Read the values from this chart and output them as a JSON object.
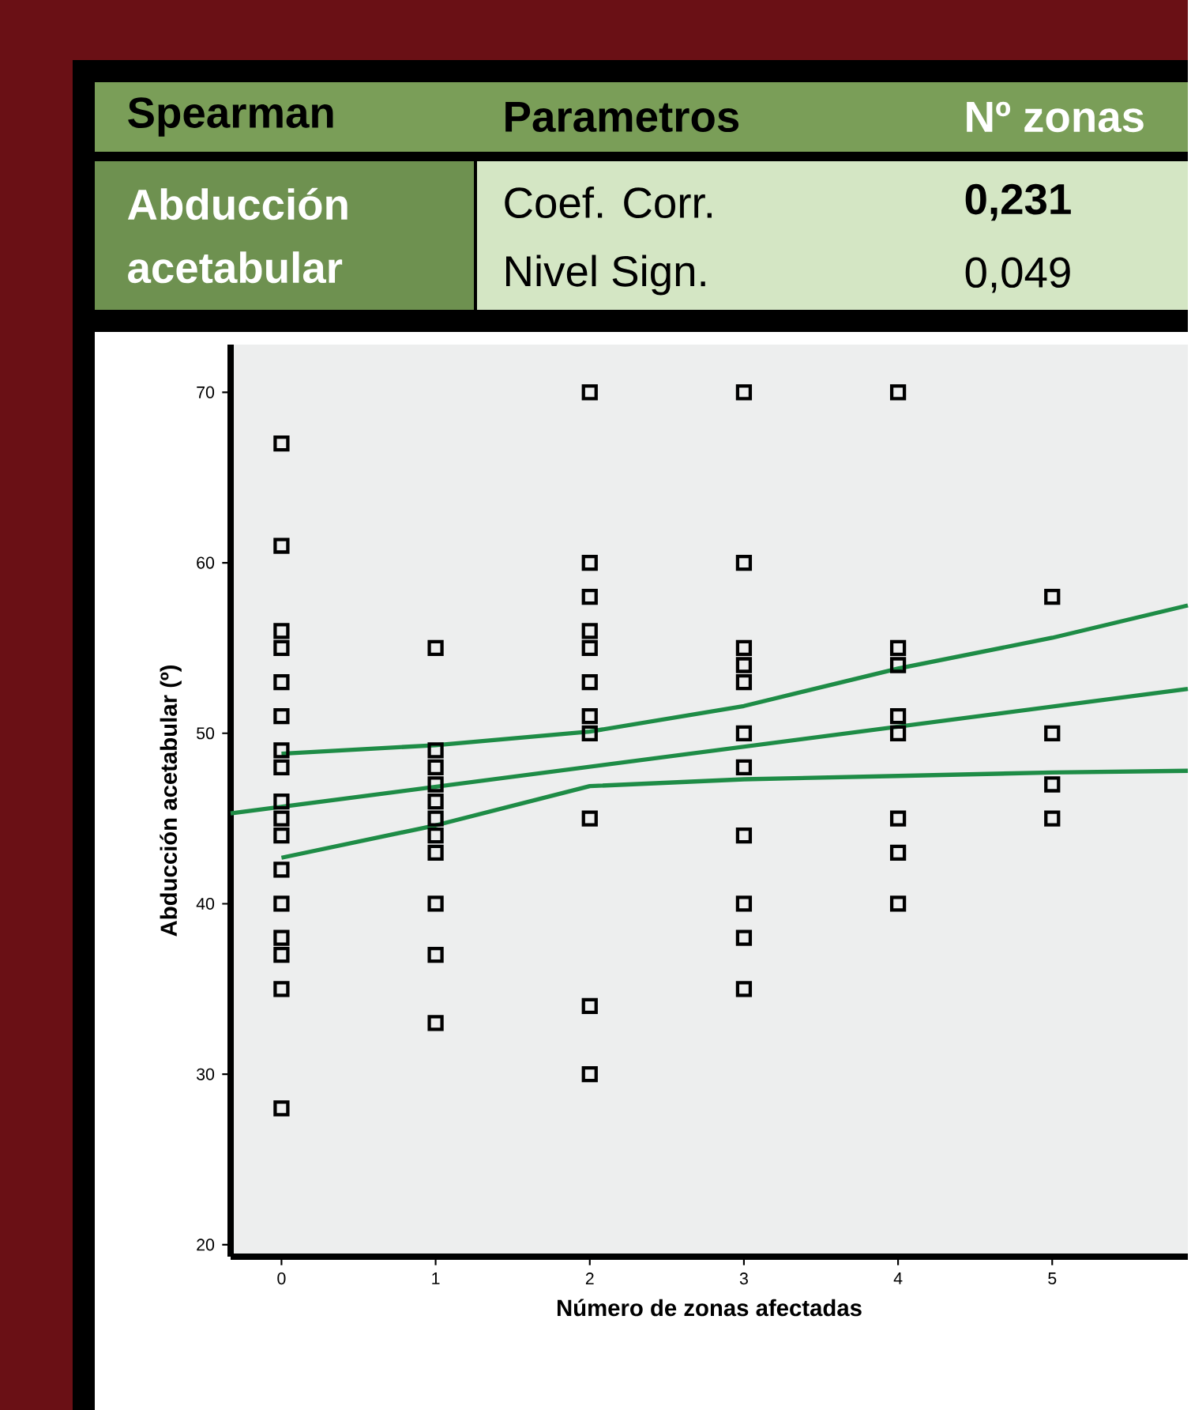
{
  "chart_data": {
    "type": "scatter",
    "xlabel": "Número de zonas afectadas",
    "ylabel": "Abducción acetabular (º)",
    "annotations": [
      "Spearman",
      "Parametros",
      "Nº zonas",
      "Abducción acetabular",
      "Coef. Corr.",
      "0,231",
      "Nivel Sign.",
      "0,049"
    ],
    "xlim": [
      -0.33,
      5.88
    ],
    "ylim": [
      19.3,
      72.8
    ],
    "xticks": [
      0,
      1,
      2,
      3,
      4,
      5
    ],
    "yticks": [
      20,
      30,
      40,
      50,
      60,
      70
    ],
    "series": [
      {
        "marker": "square",
        "color": "#000000",
        "x": [
          0,
          0,
          0,
          0,
          0,
          0,
          0,
          0,
          0,
          0,
          0,
          0,
          0,
          0,
          0,
          0,
          0,
          1,
          1,
          1,
          1,
          1,
          1,
          1,
          1,
          1,
          1,
          1,
          2,
          2,
          2,
          2,
          2,
          2,
          2,
          2,
          2,
          2,
          2,
          3,
          3,
          3,
          3,
          3,
          3,
          3,
          3,
          3,
          3,
          3,
          4,
          4,
          4,
          4,
          4,
          4,
          4,
          4,
          5,
          5,
          5,
          5
        ],
        "values": [
          67,
          61,
          56,
          55,
          53,
          51,
          49,
          48,
          46,
          45,
          44,
          42,
          40,
          38,
          37,
          35,
          28,
          55,
          49,
          48,
          47,
          46,
          45,
          44,
          43,
          40,
          37,
          33,
          70,
          60,
          58,
          56,
          55,
          53,
          51,
          50,
          45,
          34,
          30,
          70,
          60,
          55,
          54,
          53,
          50,
          48,
          44,
          40,
          38,
          35,
          70,
          55,
          54,
          51,
          50,
          45,
          43,
          40,
          58,
          50,
          47,
          45
        ]
      },
      {
        "type": "line",
        "color": "#1e8c46",
        "x": [
          -0.33,
          5.88
        ],
        "values": [
          45.3,
          52.6
        ]
      },
      {
        "type": "line",
        "color": "#1e8c46",
        "x": [
          0,
          1,
          2,
          3,
          4,
          5,
          5.88
        ],
        "values": [
          48.8,
          49.3,
          50.1,
          51.6,
          53.8,
          55.6,
          57.5
        ]
      },
      {
        "type": "line",
        "color": "#1e8c46",
        "x": [
          0,
          1,
          2,
          3,
          4,
          5,
          5.88
        ],
        "values": [
          42.7,
          44.6,
          46.9,
          47.3,
          47.5,
          47.7,
          47.8
        ]
      }
    ]
  }
}
